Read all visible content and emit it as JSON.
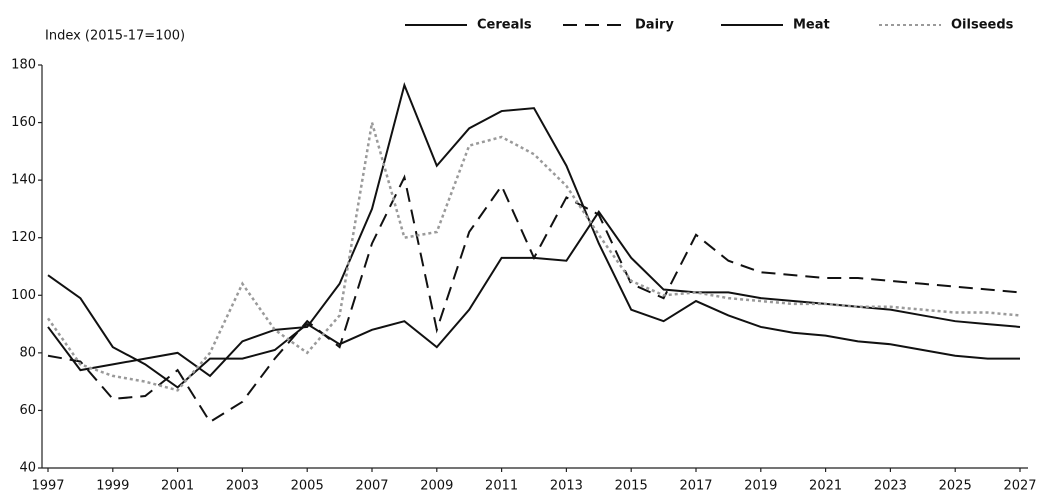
{
  "chart_data": {
    "type": "line",
    "y_label": "Index (2015-17=100)",
    "x": [
      1997,
      1998,
      1999,
      2000,
      2001,
      2002,
      2003,
      2004,
      2005,
      2006,
      2007,
      2008,
      2009,
      2010,
      2011,
      2012,
      2013,
      2014,
      2015,
      2016,
      2017,
      2018,
      2019,
      2020,
      2021,
      2022,
      2023,
      2024,
      2025,
      2026,
      2027
    ],
    "series": [
      {
        "name": "Cereals",
        "color": "#111111",
        "style": "solid",
        "values": [
          89,
          74,
          76,
          78,
          80,
          72,
          84,
          88,
          89,
          104,
          130,
          173,
          145,
          158,
          164,
          165,
          145,
          118,
          95,
          91,
          98,
          93,
          89,
          87,
          86,
          84,
          83,
          81,
          79,
          78,
          78
        ]
      },
      {
        "name": "Dairy",
        "color": "#111111",
        "style": "dashed",
        "values": [
          79,
          77,
          64,
          65,
          74,
          56,
          63,
          78,
          91,
          82,
          118,
          141,
          88,
          122,
          138,
          113,
          134,
          128,
          104,
          99,
          121,
          112,
          108,
          107,
          106,
          106,
          105,
          104,
          103,
          102,
          101
        ]
      },
      {
        "name": "Meat",
        "color": "#111111",
        "style": "solid",
        "values": [
          107,
          99,
          82,
          76,
          68,
          78,
          78,
          81,
          90,
          83,
          88,
          91,
          82,
          95,
          113,
          113,
          112,
          129,
          113,
          102,
          101,
          101,
          99,
          98,
          97,
          96,
          95,
          93,
          91,
          90,
          89
        ]
      },
      {
        "name": "Oilseeds",
        "color": "#9a9a9a",
        "style": "dotted",
        "values": [
          92,
          76,
          72,
          70,
          67,
          80,
          104,
          88,
          80,
          93,
          160,
          120,
          122,
          152,
          155,
          149,
          138,
          121,
          105,
          100,
          101,
          99,
          98,
          97,
          97,
          96,
          96,
          95,
          94,
          94,
          93
        ]
      }
    ],
    "xlim": [
      1997,
      2027
    ],
    "xticks": [
      1997,
      1999,
      2001,
      2003,
      2005,
      2007,
      2009,
      2011,
      2013,
      2015,
      2017,
      2019,
      2021,
      2023,
      2025,
      2027
    ],
    "ylim": [
      40,
      180
    ],
    "yticks": [
      40,
      60,
      80,
      100,
      120,
      140,
      160,
      180
    ],
    "grid": false,
    "legend": "top"
  }
}
